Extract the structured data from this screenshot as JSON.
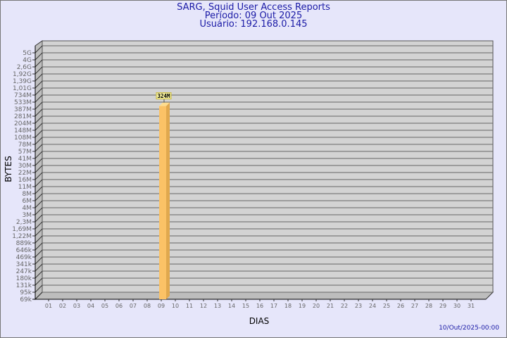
{
  "header": {
    "line1": "SARG, Squid User Access Reports",
    "line2": "Período: 09 Out 2025",
    "line3": "Usuário: 192.168.0.145"
  },
  "footer": {
    "timestamp": "10/Out/2025-00:00"
  },
  "chart_data": {
    "type": "bar",
    "xlabel": "DIAS",
    "ylabel": "BYTES",
    "y_scale": "log",
    "grid": true,
    "categories": [
      "01",
      "02",
      "03",
      "04",
      "05",
      "06",
      "07",
      "08",
      "09",
      "10",
      "11",
      "12",
      "13",
      "14",
      "15",
      "16",
      "17",
      "18",
      "19",
      "20",
      "21",
      "22",
      "23",
      "24",
      "25",
      "26",
      "27",
      "28",
      "29",
      "30",
      "31"
    ],
    "series": [
      {
        "values": [
          null,
          null,
          null,
          null,
          null,
          null,
          null,
          null,
          324000000,
          null,
          null,
          null,
          null,
          null,
          null,
          null,
          null,
          null,
          null,
          null,
          null,
          null,
          null,
          null,
          null,
          null,
          null,
          null,
          null,
          null,
          null
        ]
      }
    ],
    "data_labels": {
      "09": "324M"
    },
    "y_ticks": [
      "5G",
      "4G",
      "2,6G",
      "1,92G",
      "1,39G",
      "1,01G",
      "734M",
      "533M",
      "387M",
      "281M",
      "204M",
      "148M",
      "108M",
      "78M",
      "57M",
      "41M",
      "30M",
      "22M",
      "16M",
      "11M",
      "8M",
      "6M",
      "4M",
      "3M",
      "2,3M",
      "1,69M",
      "1,22M",
      "889k",
      "646k",
      "469k",
      "341k",
      "247k",
      "180k",
      "131k",
      "95k",
      "69k"
    ],
    "colors": {
      "bar": "#fbc266",
      "bar_side": "#e0a84e",
      "bar_top": "#fddc8f",
      "wall": "#d3d3d3",
      "side_wall": "#bdbdbd",
      "label_box": "#f5f0a0"
    }
  }
}
